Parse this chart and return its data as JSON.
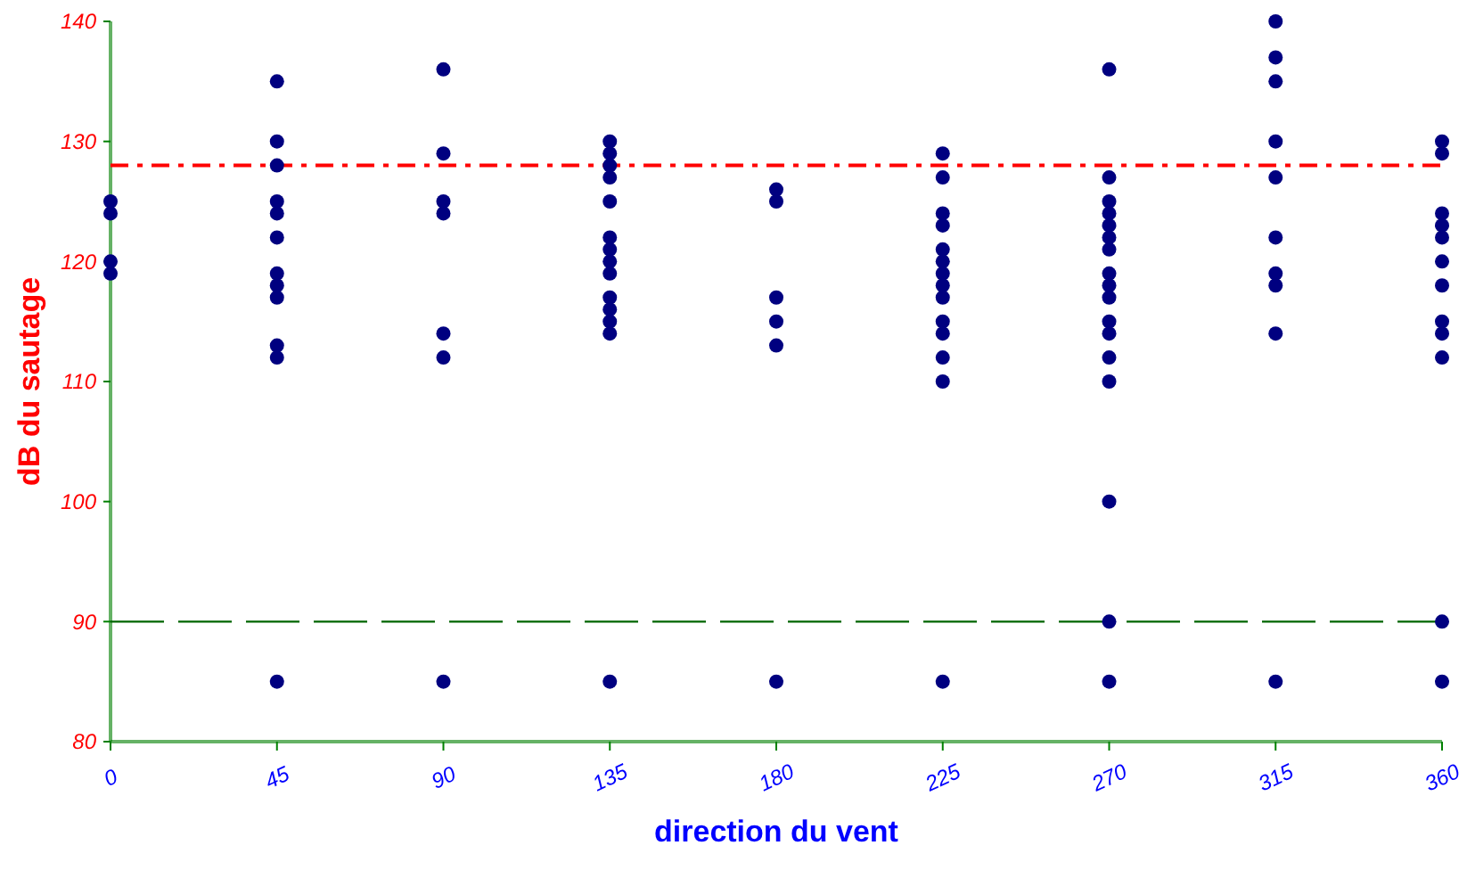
{
  "chart_data": {
    "type": "scatter",
    "xlabel": "direction du vent",
    "ylabel": "dB du sautage",
    "series": [
      {
        "color": "#000080",
        "x": [
          0,
          0,
          0,
          0,
          45,
          45,
          45,
          45,
          45,
          45,
          45,
          45,
          45,
          45,
          45,
          45,
          90,
          90,
          90,
          90,
          90,
          90,
          90,
          135,
          135,
          135,
          135,
          135,
          135,
          135,
          135,
          135,
          135,
          135,
          135,
          135,
          135,
          180,
          180,
          180,
          180,
          180,
          180,
          225,
          225,
          225,
          225,
          225,
          225,
          225,
          225,
          225,
          225,
          225,
          225,
          225,
          225,
          270,
          270,
          270,
          270,
          270,
          270,
          270,
          270,
          270,
          270,
          270,
          270,
          270,
          270,
          270,
          270,
          270,
          315,
          315,
          315,
          315,
          315,
          315,
          315,
          315,
          315,
          315,
          360,
          360,
          360,
          360,
          360,
          360,
          360,
          360,
          360,
          360,
          360,
          360
        ],
        "values": [
          125,
          124,
          120,
          119,
          135,
          130,
          128,
          125,
          124,
          122,
          119,
          118,
          117,
          113,
          112,
          85,
          136,
          129,
          125,
          124,
          114,
          112,
          85,
          130,
          129,
          128,
          127,
          125,
          122,
          121,
          120,
          119,
          117,
          116,
          115,
          114,
          85,
          126,
          125,
          117,
          115,
          113,
          85,
          129,
          127,
          124,
          123,
          121,
          120,
          119,
          118,
          117,
          115,
          114,
          112,
          110,
          85,
          136,
          127,
          125,
          124,
          123,
          122,
          121,
          119,
          118,
          117,
          115,
          114,
          112,
          110,
          100,
          90,
          85,
          140,
          137,
          135,
          130,
          127,
          122,
          119,
          118,
          114,
          85,
          130,
          129,
          124,
          123,
          122,
          120,
          118,
          115,
          114,
          112,
          90,
          85
        ]
      }
    ],
    "xlim": [
      0,
      360
    ],
    "xticks": [
      0,
      45,
      90,
      135,
      180,
      225,
      270,
      315,
      360
    ],
    "ylim": [
      80,
      140
    ],
    "yticks": [
      80,
      90,
      100,
      110,
      120,
      130,
      140
    ],
    "ref_lines": [
      {
        "axis": "y",
        "value": 128,
        "color": "#ff0000",
        "line_style": "dashdot"
      },
      {
        "axis": "y",
        "value": 90,
        "color": "#006400",
        "line_style": "dashed"
      }
    ],
    "grid": false,
    "marker": "circle"
  }
}
